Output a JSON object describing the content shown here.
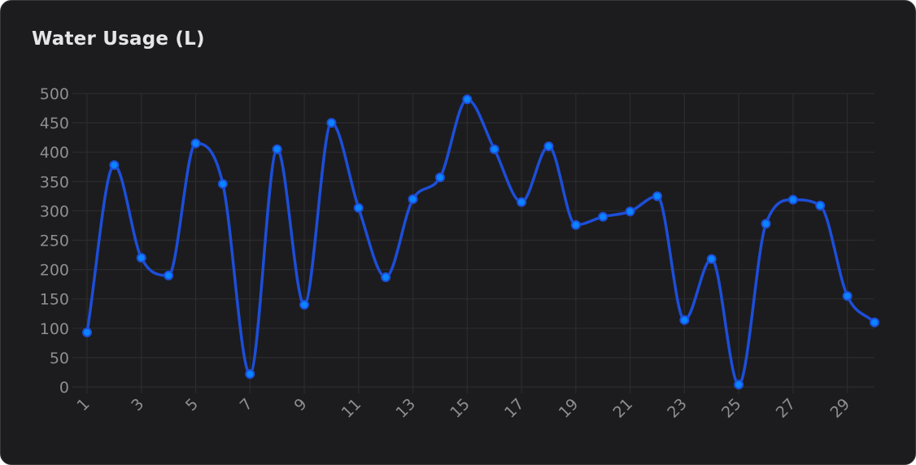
{
  "card": {
    "title": "Water Usage (L)"
  },
  "colors": {
    "background": "#1c1c1e",
    "grid": "#2c2c2e",
    "line": "#1d4ed8",
    "point_fill": "#0a84ff",
    "tick_text": "#8e8e93"
  },
  "chart_data": {
    "type": "line",
    "title": "Water Usage (L)",
    "xlabel": "",
    "ylabel": "",
    "ylim": [
      0,
      500
    ],
    "y_ticks": [
      0,
      50,
      100,
      150,
      200,
      250,
      300,
      350,
      400,
      450,
      500
    ],
    "x_tick_labels": [
      "1",
      "3",
      "5",
      "7",
      "9",
      "11",
      "13",
      "15",
      "17",
      "19",
      "21",
      "23",
      "25",
      "27",
      "29"
    ],
    "grid": true,
    "legend": "none",
    "curve": "smooth",
    "x": [
      1,
      2,
      3,
      4,
      5,
      6,
      7,
      8,
      9,
      10,
      11,
      12,
      13,
      14,
      15,
      16,
      17,
      18,
      19,
      20,
      21,
      22,
      23,
      24,
      25,
      26,
      27,
      28,
      29,
      30
    ],
    "series": [
      {
        "values": [
          93,
          378,
          220,
          190,
          415,
          346,
          22,
          405,
          140,
          450,
          305,
          187,
          320,
          357,
          490,
          405,
          315,
          410,
          276,
          290,
          299,
          325,
          114,
          218,
          4,
          278,
          319,
          309,
          155,
          110
        ]
      }
    ]
  }
}
